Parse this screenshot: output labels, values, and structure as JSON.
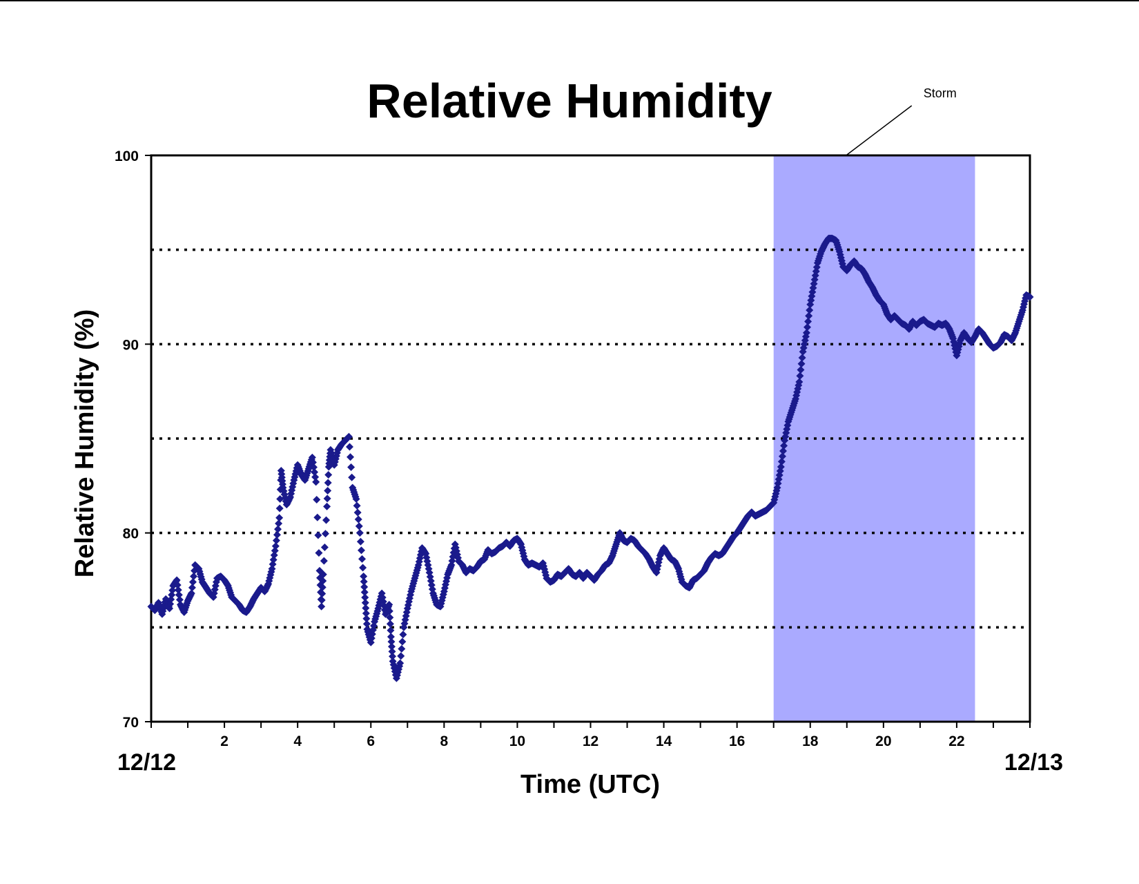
{
  "chart_data": {
    "type": "scatter",
    "title": "Relative Humidity",
    "xlabel": "Time (UTC)",
    "ylabel": "Relative Humidity (%)",
    "xlim": [
      0,
      24
    ],
    "ylim": [
      70,
      100
    ],
    "x_ticks": [
      2,
      4,
      6,
      8,
      10,
      12,
      14,
      16,
      18,
      20,
      22
    ],
    "y_ticks": [
      70,
      80,
      90,
      100
    ],
    "gridlines_y": [
      75,
      80,
      85,
      90,
      95
    ],
    "grid": "horizontal dotted",
    "start_date_label": "12/12",
    "end_date_label": "12/13",
    "marker_color": "#1a1a8c",
    "annotation": {
      "label": "Storm",
      "x_start": 17.0,
      "x_end": 22.5,
      "color": "#aaaaff"
    },
    "series": [
      {
        "marker": "diamond",
        "points": [
          [
            0.0,
            76.1
          ],
          [
            0.1,
            75.9
          ],
          [
            0.2,
            76.3
          ],
          [
            0.3,
            75.7
          ],
          [
            0.4,
            76.5
          ],
          [
            0.5,
            76.0
          ],
          [
            0.6,
            77.2
          ],
          [
            0.7,
            77.5
          ],
          [
            0.8,
            76.2
          ],
          [
            0.9,
            75.8
          ],
          [
            1.0,
            76.4
          ],
          [
            1.1,
            76.8
          ],
          [
            1.2,
            78.3
          ],
          [
            1.3,
            78.1
          ],
          [
            1.4,
            77.4
          ],
          [
            1.5,
            77.1
          ],
          [
            1.6,
            76.8
          ],
          [
            1.7,
            76.6
          ],
          [
            1.8,
            77.6
          ],
          [
            1.9,
            77.7
          ],
          [
            2.0,
            77.5
          ],
          [
            2.1,
            77.2
          ],
          [
            2.2,
            76.6
          ],
          [
            2.3,
            76.4
          ],
          [
            2.4,
            76.2
          ],
          [
            2.5,
            75.9
          ],
          [
            2.6,
            75.8
          ],
          [
            2.7,
            76.1
          ],
          [
            2.8,
            76.5
          ],
          [
            2.9,
            76.8
          ],
          [
            3.0,
            77.1
          ],
          [
            3.1,
            76.9
          ],
          [
            3.2,
            77.3
          ],
          [
            3.3,
            78.1
          ],
          [
            3.4,
            79.3
          ],
          [
            3.5,
            80.8
          ],
          [
            3.55,
            83.3
          ],
          [
            3.6,
            82.4
          ],
          [
            3.7,
            81.5
          ],
          [
            3.8,
            81.9
          ],
          [
            3.9,
            82.8
          ],
          [
            4.0,
            83.6
          ],
          [
            4.1,
            83.1
          ],
          [
            4.2,
            82.8
          ],
          [
            4.3,
            83.4
          ],
          [
            4.4,
            84.0
          ],
          [
            4.5,
            82.7
          ],
          [
            4.6,
            78.0
          ],
          [
            4.65,
            76.1
          ],
          [
            4.7,
            77.8
          ],
          [
            4.8,
            81.4
          ],
          [
            4.85,
            83.5
          ],
          [
            4.9,
            84.4
          ],
          [
            5.0,
            83.6
          ],
          [
            5.1,
            84.4
          ],
          [
            5.2,
            84.7
          ],
          [
            5.3,
            84.9
          ],
          [
            5.4,
            85.1
          ],
          [
            5.5,
            82.4
          ],
          [
            5.6,
            81.8
          ],
          [
            5.7,
            80.0
          ],
          [
            5.8,
            77.7
          ],
          [
            5.85,
            76.3
          ],
          [
            5.9,
            74.9
          ],
          [
            6.0,
            74.2
          ],
          [
            6.1,
            75.3
          ],
          [
            6.2,
            76.0
          ],
          [
            6.3,
            76.8
          ],
          [
            6.4,
            75.7
          ],
          [
            6.5,
            76.2
          ],
          [
            6.55,
            74.5
          ],
          [
            6.6,
            73.2
          ],
          [
            6.7,
            72.3
          ],
          [
            6.8,
            73.1
          ],
          [
            6.9,
            75.0
          ],
          [
            7.0,
            76.0
          ],
          [
            7.1,
            76.9
          ],
          [
            7.2,
            77.6
          ],
          [
            7.3,
            78.3
          ],
          [
            7.4,
            79.2
          ],
          [
            7.5,
            78.9
          ],
          [
            7.6,
            77.9
          ],
          [
            7.7,
            76.8
          ],
          [
            7.8,
            76.2
          ],
          [
            7.9,
            76.1
          ],
          [
            8.0,
            76.9
          ],
          [
            8.1,
            77.8
          ],
          [
            8.2,
            78.3
          ],
          [
            8.3,
            79.4
          ],
          [
            8.4,
            78.5
          ],
          [
            8.5,
            78.3
          ],
          [
            8.6,
            77.9
          ],
          [
            8.7,
            78.1
          ],
          [
            8.8,
            78.0
          ],
          [
            8.9,
            78.2
          ],
          [
            9.0,
            78.5
          ],
          [
            9.1,
            78.6
          ],
          [
            9.2,
            79.1
          ],
          [
            9.3,
            78.9
          ],
          [
            9.4,
            79.0
          ],
          [
            9.5,
            79.2
          ],
          [
            9.6,
            79.3
          ],
          [
            9.7,
            79.5
          ],
          [
            9.8,
            79.3
          ],
          [
            9.9,
            79.6
          ],
          [
            10.0,
            79.7
          ],
          [
            10.1,
            79.4
          ],
          [
            10.2,
            78.6
          ],
          [
            10.3,
            78.3
          ],
          [
            10.4,
            78.4
          ],
          [
            10.5,
            78.3
          ],
          [
            10.6,
            78.2
          ],
          [
            10.7,
            78.4
          ],
          [
            10.8,
            77.6
          ],
          [
            10.9,
            77.4
          ],
          [
            11.0,
            77.5
          ],
          [
            11.1,
            77.8
          ],
          [
            11.2,
            77.7
          ],
          [
            11.3,
            77.9
          ],
          [
            11.4,
            78.1
          ],
          [
            11.5,
            77.8
          ],
          [
            11.6,
            77.7
          ],
          [
            11.7,
            77.9
          ],
          [
            11.8,
            77.6
          ],
          [
            11.9,
            77.9
          ],
          [
            12.0,
            77.7
          ],
          [
            12.1,
            77.5
          ],
          [
            12.2,
            77.8
          ],
          [
            12.3,
            78.0
          ],
          [
            12.4,
            78.3
          ],
          [
            12.5,
            78.4
          ],
          [
            12.6,
            78.8
          ],
          [
            12.7,
            79.4
          ],
          [
            12.8,
            80.0
          ],
          [
            12.9,
            79.6
          ],
          [
            13.0,
            79.5
          ],
          [
            13.1,
            79.7
          ],
          [
            13.2,
            79.6
          ],
          [
            13.3,
            79.3
          ],
          [
            13.4,
            79.1
          ],
          [
            13.5,
            78.9
          ],
          [
            13.6,
            78.6
          ],
          [
            13.7,
            78.2
          ],
          [
            13.8,
            77.9
          ],
          [
            13.9,
            78.8
          ],
          [
            14.0,
            79.2
          ],
          [
            14.1,
            78.9
          ],
          [
            14.2,
            78.6
          ],
          [
            14.3,
            78.5
          ],
          [
            14.4,
            78.1
          ],
          [
            14.5,
            77.4
          ],
          [
            14.6,
            77.2
          ],
          [
            14.7,
            77.1
          ],
          [
            14.8,
            77.5
          ],
          [
            14.9,
            77.6
          ],
          [
            15.0,
            77.8
          ],
          [
            15.1,
            78.0
          ],
          [
            15.2,
            78.4
          ],
          [
            15.3,
            78.7
          ],
          [
            15.4,
            78.9
          ],
          [
            15.5,
            78.8
          ],
          [
            15.6,
            78.9
          ],
          [
            15.7,
            79.2
          ],
          [
            15.8,
            79.5
          ],
          [
            15.9,
            79.8
          ],
          [
            16.0,
            80.0
          ],
          [
            16.1,
            80.3
          ],
          [
            16.2,
            80.6
          ],
          [
            16.3,
            80.9
          ],
          [
            16.4,
            81.1
          ],
          [
            16.5,
            80.9
          ],
          [
            16.6,
            81.0
          ],
          [
            16.7,
            81.1
          ],
          [
            16.8,
            81.2
          ],
          [
            16.9,
            81.4
          ],
          [
            17.0,
            81.6
          ],
          [
            17.1,
            82.4
          ],
          [
            17.2,
            83.5
          ],
          [
            17.3,
            84.9
          ],
          [
            17.4,
            85.9
          ],
          [
            17.5,
            86.5
          ],
          [
            17.6,
            87.1
          ],
          [
            17.7,
            88.0
          ],
          [
            17.8,
            89.6
          ],
          [
            17.9,
            90.6
          ],
          [
            18.0,
            92.1
          ],
          [
            18.1,
            93.2
          ],
          [
            18.2,
            94.3
          ],
          [
            18.3,
            94.9
          ],
          [
            18.4,
            95.3
          ],
          [
            18.5,
            95.6
          ],
          [
            18.6,
            95.6
          ],
          [
            18.7,
            95.5
          ],
          [
            18.8,
            94.9
          ],
          [
            18.9,
            94.1
          ],
          [
            19.0,
            93.9
          ],
          [
            19.1,
            94.2
          ],
          [
            19.2,
            94.4
          ],
          [
            19.3,
            94.1
          ],
          [
            19.4,
            94.0
          ],
          [
            19.5,
            93.7
          ],
          [
            19.6,
            93.3
          ],
          [
            19.7,
            93.0
          ],
          [
            19.8,
            92.6
          ],
          [
            19.9,
            92.3
          ],
          [
            20.0,
            92.1
          ],
          [
            20.1,
            91.6
          ],
          [
            20.2,
            91.3
          ],
          [
            20.3,
            91.5
          ],
          [
            20.4,
            91.3
          ],
          [
            20.5,
            91.1
          ],
          [
            20.6,
            91.0
          ],
          [
            20.7,
            90.8
          ],
          [
            20.8,
            91.2
          ],
          [
            20.9,
            91.0
          ],
          [
            21.0,
            91.2
          ],
          [
            21.1,
            91.3
          ],
          [
            21.2,
            91.1
          ],
          [
            21.3,
            91.0
          ],
          [
            21.4,
            90.9
          ],
          [
            21.5,
            91.1
          ],
          [
            21.6,
            91.0
          ],
          [
            21.7,
            91.1
          ],
          [
            21.8,
            90.8
          ],
          [
            21.9,
            90.3
          ],
          [
            22.0,
            89.4
          ],
          [
            22.1,
            90.2
          ],
          [
            22.2,
            90.6
          ],
          [
            22.3,
            90.3
          ],
          [
            22.4,
            90.1
          ],
          [
            22.5,
            90.4
          ],
          [
            22.6,
            90.8
          ],
          [
            22.7,
            90.6
          ],
          [
            22.8,
            90.3
          ],
          [
            22.9,
            90.0
          ],
          [
            23.0,
            89.8
          ],
          [
            23.1,
            89.9
          ],
          [
            23.2,
            90.1
          ],
          [
            23.3,
            90.5
          ],
          [
            23.4,
            90.4
          ],
          [
            23.5,
            90.2
          ],
          [
            23.6,
            90.6
          ],
          [
            23.7,
            91.2
          ],
          [
            23.8,
            91.8
          ],
          [
            23.9,
            92.6
          ],
          [
            24.0,
            92.5
          ]
        ]
      }
    ]
  }
}
